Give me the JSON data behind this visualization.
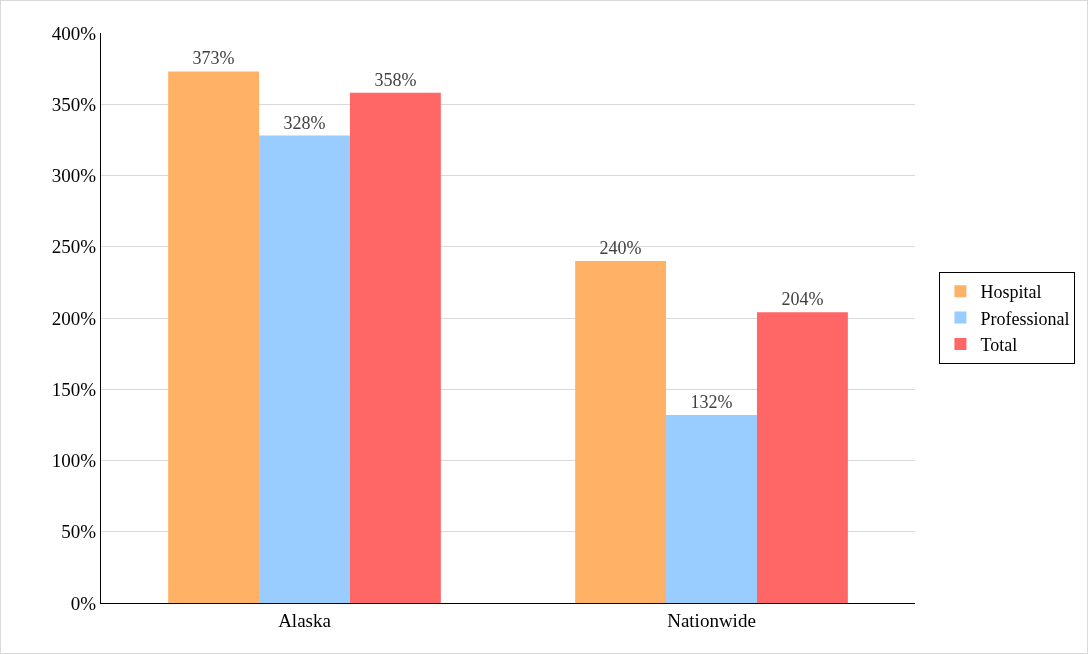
{
  "chart_data": {
    "type": "bar",
    "categories": [
      "Alaska",
      "Nationwide"
    ],
    "series": [
      {
        "name": "Hospital",
        "color": "#ffb266",
        "values": [
          373,
          240
        ],
        "value_labels": [
          "373%",
          "240%"
        ]
      },
      {
        "name": "Professional",
        "color": "#99ccff",
        "values": [
          328,
          132
        ],
        "value_labels": [
          "328%",
          "132%"
        ]
      },
      {
        "name": "Total",
        "color": "#ff6666",
        "values": [
          358,
          204
        ],
        "value_labels": [
          "358%",
          "204%"
        ]
      }
    ],
    "ylim": [
      0,
      400
    ],
    "yticks": [
      {
        "value": 0,
        "label": "0%"
      },
      {
        "value": 50,
        "label": "50%"
      },
      {
        "value": 100,
        "label": "100%"
      },
      {
        "value": 150,
        "label": "150%"
      },
      {
        "value": 200,
        "label": "200%"
      },
      {
        "value": 250,
        "label": "250%"
      },
      {
        "value": 300,
        "label": "300%"
      },
      {
        "value": 350,
        "label": "350%"
      },
      {
        "value": 400,
        "label": "400%"
      }
    ],
    "grid": "y",
    "legend": "right"
  }
}
